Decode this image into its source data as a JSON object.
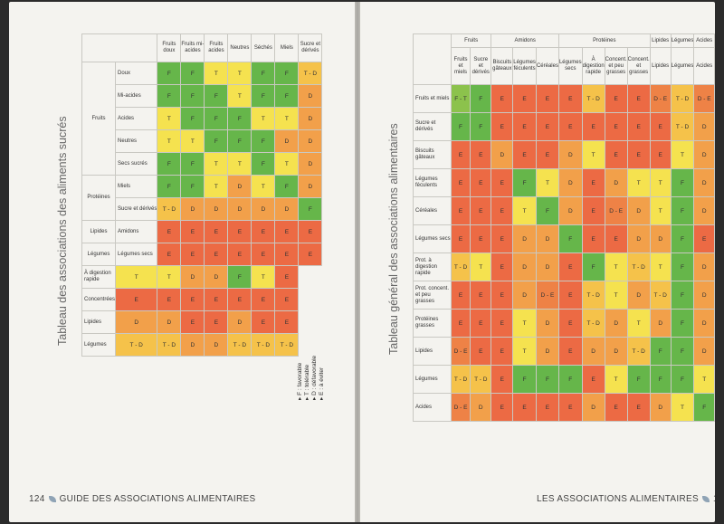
{
  "left": {
    "title": "Tableau des associations des aliments sucrés",
    "folio_number": "124",
    "folio_text": "Guide des associations alimentaires",
    "groups": [
      {
        "label": "Fruits",
        "rows": 5
      },
      {
        "label": "Protéines",
        "rows": 2
      },
      {
        "label": "Lipides",
        "rows": 1
      },
      {
        "label": "Légumes",
        "rows": 1
      }
    ],
    "columns": [
      "Fruits doux",
      "Fruits mi-acides",
      "Fruits acides",
      "Neutres",
      "Séchés",
      "Miels",
      "Sucre et dérivés"
    ],
    "row_labels": [
      "Doux",
      "Mi-acides",
      "Acides",
      "Neutres",
      "Secs sucrés",
      "Miels",
      "Sucre et dérivés",
      "Amidons",
      "Légumes secs",
      "À digestion rapide",
      "Concentrées",
      "Lipides",
      "Légumes"
    ],
    "cells": [
      [
        "F",
        "F",
        "T",
        "T",
        "F",
        "F",
        "T - D"
      ],
      [
        "F",
        "F",
        "F",
        "T",
        "F",
        "F",
        "D"
      ],
      [
        "T",
        "F",
        "F",
        "F",
        "T",
        "T",
        "D"
      ],
      [
        "T",
        "T",
        "F",
        "F",
        "F",
        "D",
        "D"
      ],
      [
        "F",
        "F",
        "T",
        "T",
        "F",
        "T",
        "D"
      ],
      [
        "F",
        "F",
        "T",
        "D",
        "T",
        "F",
        "D"
      ],
      [
        "T - D",
        "D",
        "D",
        "D",
        "D",
        "D",
        "F"
      ],
      [
        "E",
        "E",
        "E",
        "E",
        "E",
        "E",
        "E"
      ],
      [
        "E",
        "E",
        "E",
        "E",
        "E",
        "E",
        "E"
      ],
      [
        "T",
        "T",
        "D",
        "D",
        "F",
        "T",
        "E"
      ],
      [
        "E",
        "E",
        "E",
        "E",
        "E",
        "E",
        "E"
      ],
      [
        "D",
        "D",
        "E",
        "E",
        "D",
        "E",
        "E"
      ],
      [
        "T - D",
        "T - D",
        "D",
        "D",
        "T - D",
        "T - D",
        "T - D"
      ]
    ],
    "legend": [
      "F : favorable",
      "T : tolérable",
      "D : défavorable",
      "E : à éviter"
    ]
  },
  "right": {
    "title": "Tableau général des associations alimentaires",
    "folio_number": "125",
    "folio_text": "Les associations alimentaires",
    "groups": [
      {
        "label": "Fruits",
        "cols": 2
      },
      {
        "label": "Amidons",
        "cols": 3
      },
      {
        "label": "Protéines",
        "cols": 4
      },
      {
        "label": "Lipides",
        "cols": 1
      },
      {
        "label": "Légumes",
        "cols": 1
      },
      {
        "label": "Acides",
        "cols": 1
      }
    ],
    "col_labels": [
      "Fruits et miels",
      "Sucre et dérivés",
      "Biscuits gâteaux",
      "Légumes féculents",
      "Céréales",
      "Légumes secs",
      "À digestion rapide",
      "Concent. et peu grasses",
      "Concent. et grasses",
      "Lipides",
      "Légumes",
      "Acides"
    ],
    "row_labels": [
      "Fruits et miels",
      "Sucre et dérivés",
      "Biscuits gâteaux",
      "Légumes féculents",
      "Céréales",
      "Légumes secs",
      "Prot. à digestion rapide",
      "Prot. concent. et peu grasses",
      "Protéines grasses",
      "Lipides",
      "Légumes",
      "Acides"
    ],
    "cells": [
      [
        "F - T",
        "F",
        "E",
        "E",
        "E",
        "E",
        "T - D",
        "E",
        "E",
        "D - E",
        "T - D",
        "D - E"
      ],
      [
        "F",
        "F",
        "E",
        "E",
        "E",
        "E",
        "E",
        "E",
        "E",
        "E",
        "T - D",
        "D"
      ],
      [
        "E",
        "E",
        "D",
        "E",
        "E",
        "D",
        "T",
        "E",
        "E",
        "E",
        "T",
        "D"
      ],
      [
        "E",
        "E",
        "E",
        "F",
        "T",
        "D",
        "E",
        "D",
        "T",
        "T",
        "F",
        "D"
      ],
      [
        "E",
        "E",
        "E",
        "T",
        "F",
        "D",
        "E",
        "D - E",
        "D",
        "T",
        "F",
        "D"
      ],
      [
        "E",
        "E",
        "E",
        "D",
        "D",
        "F",
        "E",
        "E",
        "D",
        "D",
        "F",
        "E"
      ],
      [
        "T - D",
        "T",
        "E",
        "D",
        "D",
        "E",
        "F",
        "T",
        "T - D",
        "T",
        "F",
        "D"
      ],
      [
        "E",
        "E",
        "E",
        "D",
        "D - E",
        "E",
        "T - D",
        "T",
        "D",
        "T - D",
        "F",
        "D"
      ],
      [
        "E",
        "E",
        "E",
        "T",
        "D",
        "E",
        "T - D",
        "D",
        "T",
        "D",
        "F",
        "D"
      ],
      [
        "D - E",
        "E",
        "E",
        "T",
        "D",
        "E",
        "D",
        "D",
        "T - D",
        "F",
        "F",
        "D"
      ],
      [
        "T - D",
        "T - D",
        "E",
        "F",
        "F",
        "F",
        "E",
        "T",
        "F",
        "F",
        "F",
        "T"
      ],
      [
        "D - E",
        "D",
        "E",
        "E",
        "E",
        "E",
        "D",
        "E",
        "E",
        "D",
        "T",
        "F"
      ]
    ]
  },
  "colors": {
    "F": "#66b64a",
    "T": "#f5e24f",
    "D": "#f2a04a",
    "E": "#ec6a44",
    "T - D": "#f5c24a",
    "D - E": "#ee8246",
    "F - T": "#8cc24c"
  }
}
